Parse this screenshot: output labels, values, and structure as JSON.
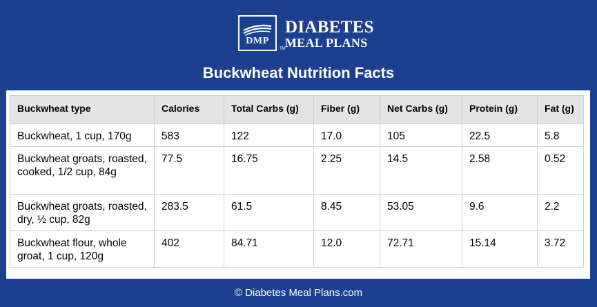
{
  "logo": {
    "mark_text": "DMP",
    "trademark": "TM",
    "line1": "DIABETES",
    "line2": "MEAL PLANS"
  },
  "title": "Buckwheat Nutrition Facts",
  "table": {
    "headers": [
      "Buckwheat type",
      "Calories",
      "Total Carbs (g)",
      "Fiber (g)",
      "Net Carbs (g)",
      "Protein (g)",
      "Fat (g)"
    ],
    "rows": [
      [
        "Buckwheat, 1 cup, 170g",
        "583",
        "122",
        "17.0",
        "105",
        "22.5",
        "5.8"
      ],
      [
        "Buckwheat groats, roasted, cooked, 1/2 cup, 84g",
        "77.5",
        "16.75",
        "2.25",
        "14.5",
        "2.58",
        "0.52"
      ],
      [
        "Buckwheat groats, roasted, dry, ½ cup, 82g",
        "283.5",
        "61.5",
        "8.45",
        "53.05",
        "9.6",
        "2.2"
      ],
      [
        "Buckwheat flour, whole groat, 1 cup, 120g",
        "402",
        "84.71",
        "12.0",
        "72.71",
        "15.14",
        "3.72"
      ]
    ]
  },
  "footer": "© Diabetes Meal Plans.com",
  "colors": {
    "background": "#1d3f8f",
    "header_fill": "#e4e4e4"
  }
}
